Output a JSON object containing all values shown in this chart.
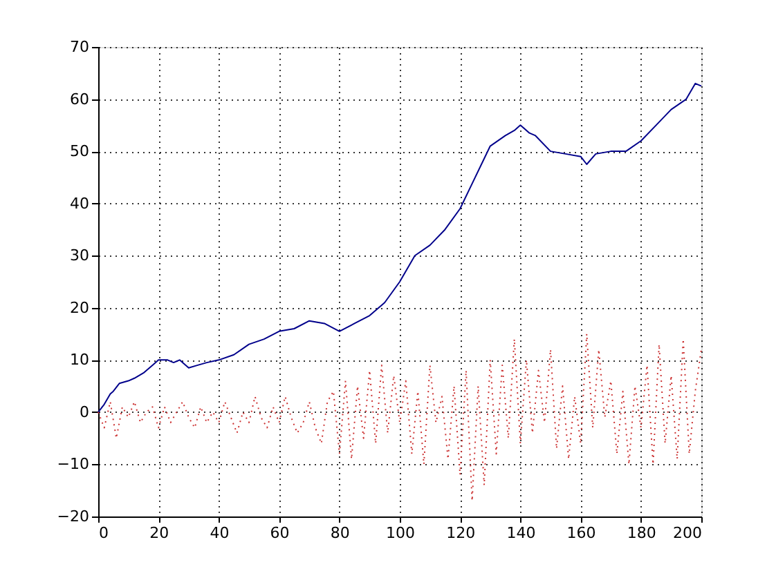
{
  "chart_data": {
    "type": "line",
    "xlim": [
      0,
      200
    ],
    "xticks": [
      0,
      20,
      40,
      60,
      80,
      100,
      120,
      140,
      160,
      180,
      200
    ],
    "ylim": [
      -20,
      70
    ],
    "yticks": [
      -20,
      -10,
      0,
      10,
      20,
      30,
      40,
      50,
      60,
      70
    ],
    "grid": true,
    "marker": "none",
    "series": [
      {
        "color": "#00008b",
        "line_style": "solid",
        "x": [
          0,
          2,
          4,
          5,
          7,
          10,
          12,
          15,
          18,
          20,
          23,
          25,
          27,
          30,
          33,
          36,
          40,
          45,
          50,
          55,
          60,
          65,
          70,
          75,
          80,
          85,
          90,
          95,
          100,
          105,
          110,
          115,
          120,
          125,
          130,
          135,
          138,
          140,
          143,
          145,
          150,
          155,
          160,
          162,
          165,
          170,
          175,
          180,
          185,
          190,
          195,
          198,
          200
        ],
        "values": [
          0,
          1.5,
          3.5,
          4,
          5.5,
          6,
          6.5,
          7.5,
          9,
          10,
          10,
          9.5,
          10,
          8.5,
          9,
          9.5,
          10,
          11,
          13,
          14,
          15.5,
          16,
          17.5,
          17,
          15.5,
          17,
          18.5,
          21,
          25,
          30,
          32,
          35,
          39,
          45,
          51,
          53,
          54,
          55,
          53.5,
          53,
          50,
          49.5,
          49,
          47.5,
          49.5,
          50,
          50,
          52,
          55,
          58,
          60,
          63,
          62.5
        ]
      },
      {
        "color": "#cc3333",
        "line_style": "dotted",
        "x": [
          0,
          2,
          4,
          6,
          8,
          10,
          12,
          14,
          16,
          18,
          20,
          22,
          24,
          26,
          28,
          30,
          32,
          34,
          36,
          38,
          40,
          42,
          44,
          46,
          48,
          50,
          52,
          54,
          56,
          58,
          60,
          62,
          64,
          66,
          68,
          70,
          72,
          74,
          76,
          78,
          80,
          82,
          84,
          86,
          88,
          90,
          92,
          94,
          96,
          98,
          100,
          102,
          104,
          106,
          108,
          110,
          112,
          114,
          116,
          118,
          120,
          122,
          124,
          126,
          128,
          130,
          132,
          134,
          136,
          138,
          140,
          142,
          144,
          146,
          148,
          150,
          152,
          154,
          156,
          158,
          160,
          162,
          164,
          166,
          168,
          170,
          172,
          174,
          176,
          178,
          180,
          182,
          184,
          186,
          188,
          190,
          192,
          194,
          196,
          198,
          200
        ],
        "values": [
          0,
          -3,
          2,
          -5,
          1,
          -1,
          2,
          -2,
          0,
          1,
          -3,
          1,
          -2,
          0,
          2,
          -1,
          -3,
          1,
          -2,
          0,
          -2,
          2,
          -1,
          -4,
          0,
          -2,
          3,
          -1,
          -3,
          1,
          -2,
          3,
          -1,
          -4,
          -2,
          2,
          -3,
          -6,
          2,
          4,
          -8,
          6,
          -9,
          5,
          -5,
          8,
          -6,
          9,
          -4,
          7,
          -2,
          6,
          -8,
          4,
          -10,
          9,
          -2,
          3,
          -9,
          5,
          -12,
          8,
          -17,
          5,
          -14,
          10,
          -8,
          9,
          -5,
          14,
          -6,
          10,
          -4,
          8,
          -2,
          12,
          -7,
          5,
          -9,
          3,
          -6,
          15,
          -3,
          12,
          -1,
          6,
          -8,
          4,
          -10,
          5,
          -3,
          9,
          -10,
          13,
          -6,
          7,
          -9,
          14,
          -8,
          4,
          12
        ]
      }
    ]
  }
}
